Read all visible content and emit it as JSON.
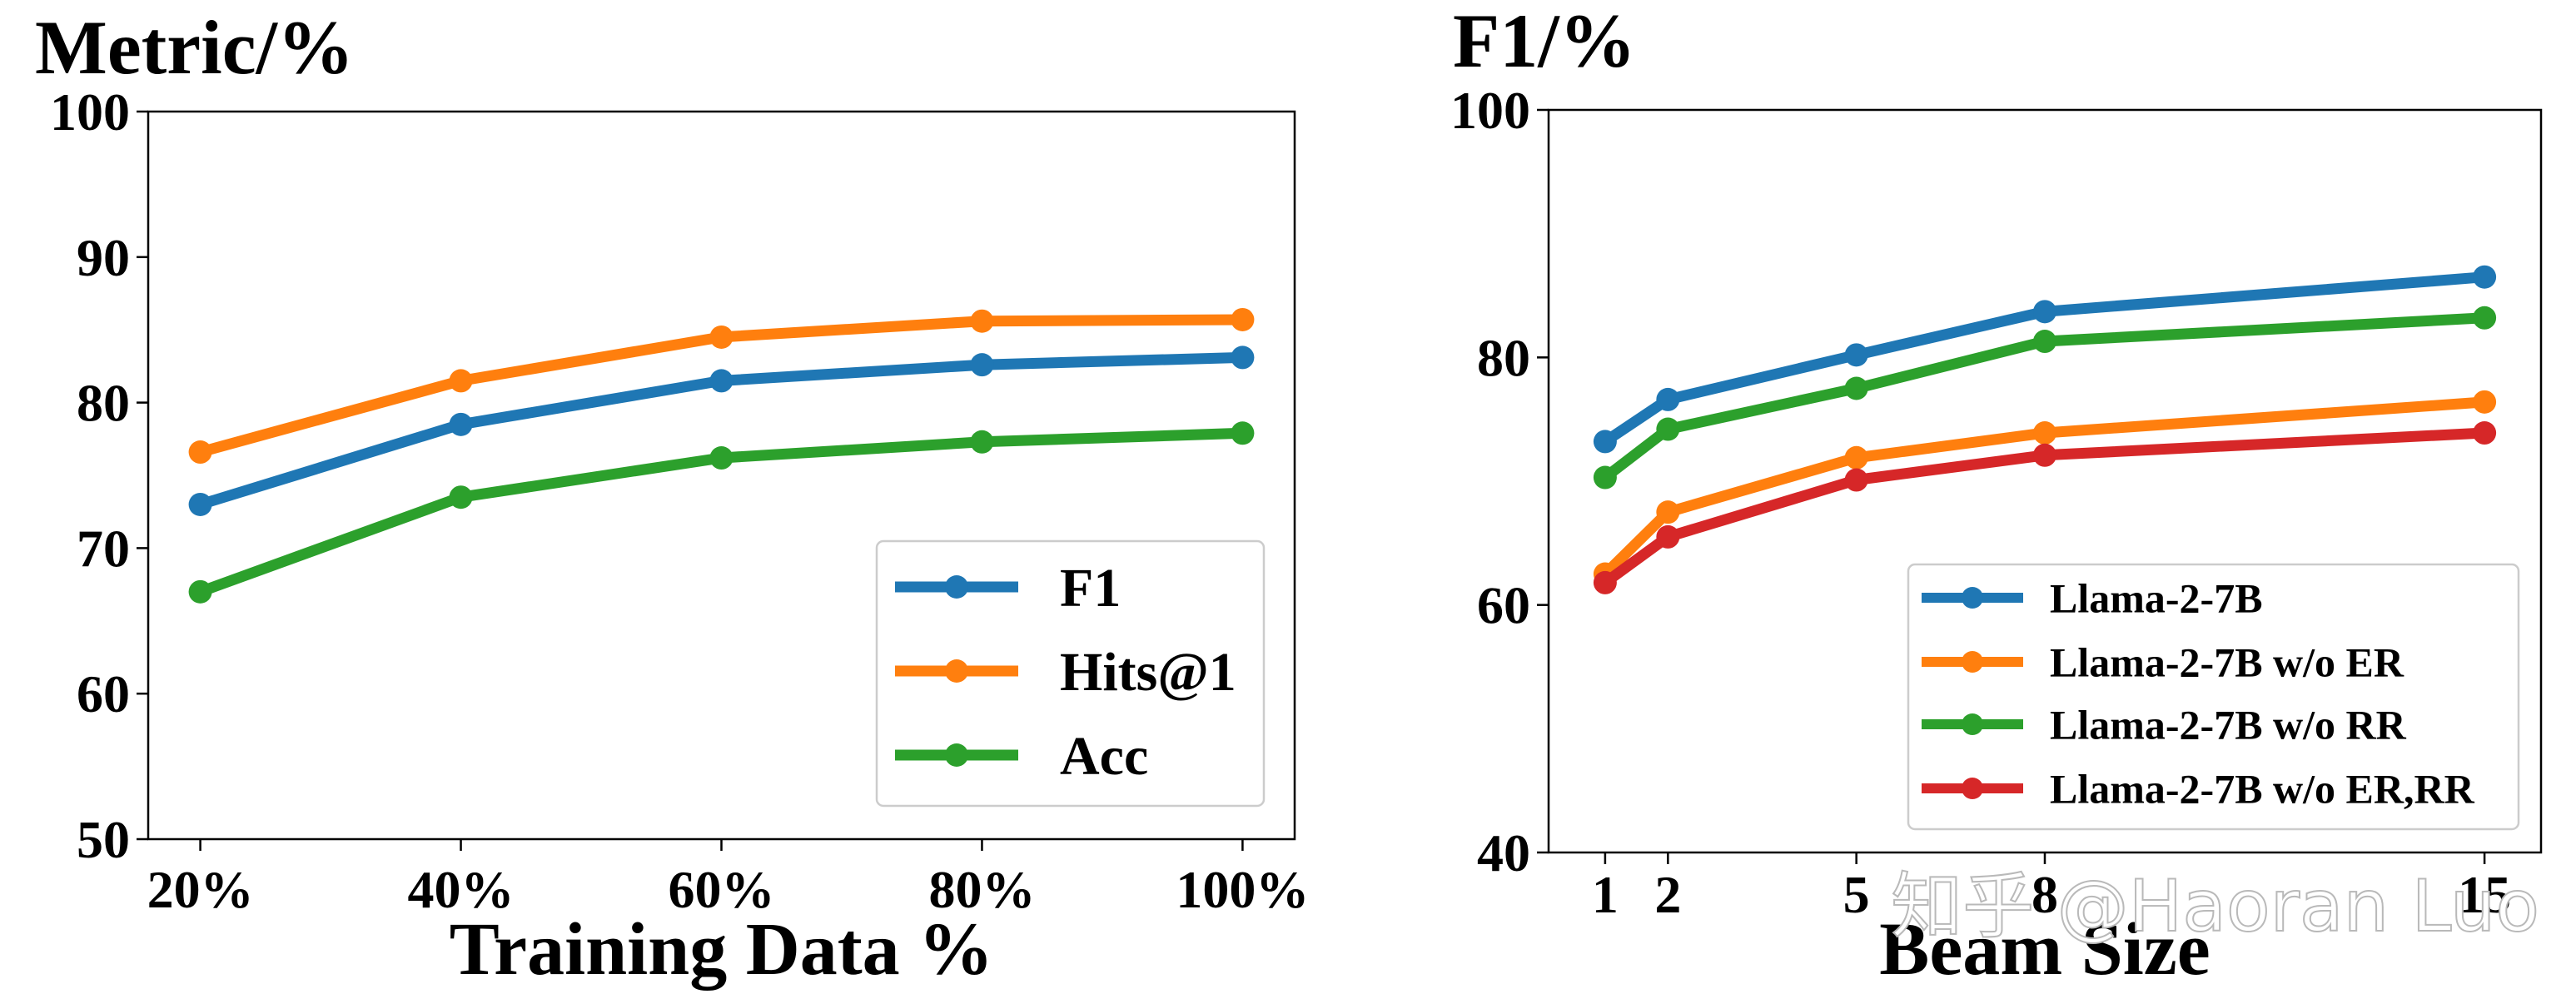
{
  "watermark": "知乎 @Haoran Luo",
  "chart_data": [
    {
      "type": "line",
      "title": "Metric/%",
      "xlabel": "Training Data %",
      "ylabel": "",
      "categories": [
        "20%",
        "40%",
        "60%",
        "80%",
        "100%"
      ],
      "ylim": [
        50,
        100
      ],
      "yticks": [
        50,
        60,
        70,
        80,
        90,
        100
      ],
      "grid": false,
      "legend": "bottom-right",
      "series": [
        {
          "name": "F1",
          "color": "#1f77b4",
          "values": [
            73.0,
            78.5,
            81.5,
            82.6,
            83.1
          ]
        },
        {
          "name": "Hits@1",
          "color": "#ff7f0e",
          "values": [
            76.6,
            81.5,
            84.5,
            85.6,
            85.7
          ]
        },
        {
          "name": "Acc",
          "color": "#2ca02c",
          "values": [
            67.0,
            73.5,
            76.2,
            77.3,
            77.9
          ]
        }
      ]
    },
    {
      "type": "line",
      "title": "F1/%",
      "xlabel": "Beam Size",
      "ylabel": "",
      "x": [
        1,
        2,
        5,
        8,
        15
      ],
      "xlim": [
        0.1,
        15.9
      ],
      "ylim": [
        40,
        100
      ],
      "yticks": [
        40,
        60,
        80,
        100
      ],
      "grid": false,
      "legend": "bottom-right",
      "series": [
        {
          "name": "Llama-2-7B",
          "color": "#1f77b4",
          "values": [
            73.2,
            76.6,
            80.2,
            83.7,
            86.5
          ]
        },
        {
          "name": "Llama-2-7B w/o ER",
          "color": "#ff7f0e",
          "values": [
            62.5,
            67.5,
            71.9,
            73.9,
            76.4
          ]
        },
        {
          "name": "Llama-2-7B w/o RR",
          "color": "#2ca02c",
          "values": [
            70.3,
            74.2,
            77.5,
            81.3,
            83.2
          ]
        },
        {
          "name": "Llama-2-7B w/o ER,RR",
          "color": "#d62728",
          "values": [
            61.8,
            65.5,
            70.1,
            72.1,
            73.9
          ]
        }
      ]
    }
  ]
}
